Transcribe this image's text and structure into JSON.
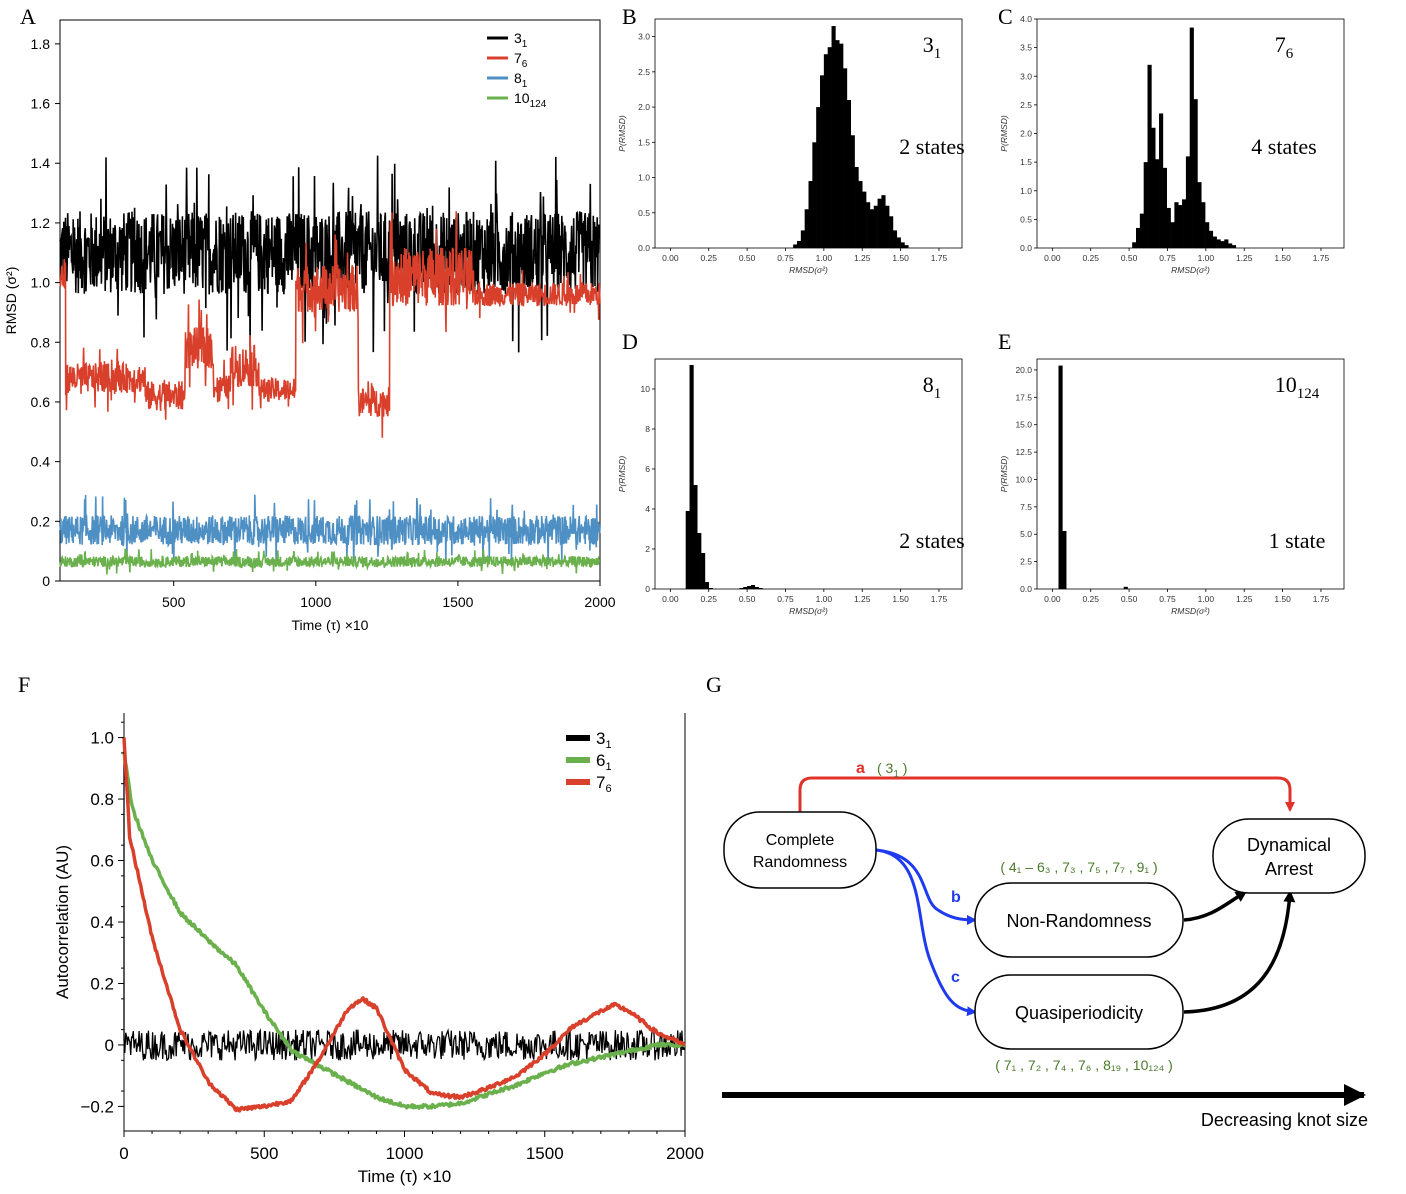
{
  "panel_letters": {
    "A": "A",
    "B": "B",
    "C": "C",
    "D": "D",
    "E": "E",
    "F": "F",
    "G": "G"
  },
  "colors": {
    "black": "#000000",
    "red": "#d9402b",
    "blue": "#4e8fc4",
    "green": "#6ab04c",
    "arrow_red": "#e0322a",
    "arrow_blue": "#1f3bf0",
    "paren_green": "#4a7a2a"
  },
  "chart_data": [
    {
      "id": "A",
      "type": "line",
      "xlabel": "Time (τ) ×10",
      "ylabel": "RMSD (σ²)",
      "xlim": [
        100,
        2000
      ],
      "ylim": [
        0,
        1.88
      ],
      "xticks": [
        500,
        1000,
        1500,
        2000
      ],
      "yticks": [
        0,
        0.2,
        0.4,
        0.6,
        0.8,
        1.0,
        1.2,
        1.4,
        1.6,
        1.8
      ],
      "ytick_labels": [
        "0",
        "0.2",
        "0.4",
        "0.6",
        "0.8",
        "1.0",
        "1.2",
        "1.4",
        "1.6",
        "1.8"
      ],
      "legend_placement": "top-right",
      "series": [
        {
          "name": "3",
          "sub": "1",
          "color": "#000000",
          "segments": [
            {
              "x0": 100,
              "x1": 2000,
              "base": 1.1,
              "noise": 0.14
            }
          ]
        },
        {
          "name": "7",
          "sub": "6",
          "color": "#d9402b",
          "segments": [
            {
              "x0": 100,
              "x1": 120,
              "base": 1.02,
              "noise": 0.06
            },
            {
              "x0": 120,
              "x1": 400,
              "base": 0.68,
              "noise": 0.05
            },
            {
              "x0": 400,
              "x1": 540,
              "base": 0.62,
              "noise": 0.05
            },
            {
              "x0": 540,
              "x1": 640,
              "base": 0.78,
              "noise": 0.07
            },
            {
              "x0": 640,
              "x1": 700,
              "base": 0.65,
              "noise": 0.04
            },
            {
              "x0": 700,
              "x1": 800,
              "base": 0.72,
              "noise": 0.07
            },
            {
              "x0": 800,
              "x1": 930,
              "base": 0.64,
              "noise": 0.04
            },
            {
              "x0": 930,
              "x1": 1150,
              "base": 0.98,
              "noise": 0.08
            },
            {
              "x0": 1150,
              "x1": 1260,
              "base": 0.6,
              "noise": 0.05
            },
            {
              "x0": 1260,
              "x1": 1550,
              "base": 1.02,
              "noise": 0.1
            },
            {
              "x0": 1550,
              "x1": 2000,
              "base": 0.96,
              "noise": 0.04
            }
          ]
        },
        {
          "name": "8",
          "sub": "1",
          "color": "#4e8fc4",
          "segments": [
            {
              "x0": 100,
              "x1": 2000,
              "base": 0.17,
              "noise": 0.05
            }
          ]
        },
        {
          "name": "10",
          "sub": "124",
          "color": "#6ab04c",
          "segments": [
            {
              "x0": 100,
              "x1": 2000,
              "base": 0.065,
              "noise": 0.018
            }
          ]
        }
      ]
    },
    {
      "id": "B",
      "type": "bar",
      "knot": "3",
      "knot_sub": "1",
      "states_label": "2 states",
      "xlabel": "RMSD(σ²)",
      "ylabel": "P(RMSD)",
      "xlim": [
        -0.1,
        1.9
      ],
      "ylim": [
        0,
        3.25
      ],
      "xticks": [
        0,
        0.25,
        0.5,
        0.75,
        1.0,
        1.25,
        1.5,
        1.75
      ],
      "xtick_labels": [
        "0.00",
        "0.25",
        "0.50",
        "0.75",
        "1.00",
        "1.25",
        "1.50",
        "1.75"
      ],
      "yticks": [
        0,
        0.5,
        1.0,
        1.5,
        2.0,
        2.5,
        3.0
      ],
      "ytick_labels": [
        "0.0",
        "0.5",
        "1.0",
        "1.5",
        "2.0",
        "2.5",
        "3.0"
      ],
      "bin_start": 0.8,
      "bin_width": 0.025,
      "values": [
        0.05,
        0.1,
        0.25,
        0.55,
        0.95,
        1.5,
        2.0,
        2.45,
        2.75,
        2.85,
        3.15,
        2.95,
        2.9,
        2.55,
        2.1,
        1.6,
        1.15,
        0.95,
        0.8,
        0.65,
        0.55,
        0.6,
        0.7,
        0.75,
        0.6,
        0.45,
        0.25,
        0.15,
        0.08,
        0.04
      ]
    },
    {
      "id": "C",
      "type": "bar",
      "knot": "7",
      "knot_sub": "6",
      "states_label": "4 states",
      "xlabel": "RMSD(σ²)",
      "ylabel": "P(RMSD)",
      "xlim": [
        -0.1,
        1.9
      ],
      "ylim": [
        0,
        4.0
      ],
      "xticks": [
        0,
        0.25,
        0.5,
        0.75,
        1.0,
        1.25,
        1.5,
        1.75
      ],
      "xtick_labels": [
        "0.00",
        "0.25",
        "0.50",
        "0.75",
        "1.00",
        "1.25",
        "1.50",
        "1.75"
      ],
      "yticks": [
        0,
        0.5,
        1.0,
        1.5,
        2.0,
        2.5,
        3.0,
        3.5,
        4.0
      ],
      "ytick_labels": [
        "0.0",
        "0.5",
        "1.0",
        "1.5",
        "2.0",
        "2.5",
        "3.0",
        "3.5",
        "4.0"
      ],
      "bin_start": 0.52,
      "bin_width": 0.025,
      "values": [
        0.1,
        0.35,
        0.6,
        1.5,
        3.2,
        2.1,
        1.55,
        2.35,
        1.4,
        0.7,
        0.45,
        0.8,
        0.75,
        0.85,
        1.6,
        3.85,
        2.6,
        1.15,
        0.8,
        0.45,
        0.3,
        0.2,
        0.15,
        0.12,
        0.15,
        0.08,
        0.05
      ]
    },
    {
      "id": "D",
      "type": "bar",
      "knot": "8",
      "knot_sub": "1",
      "states_label": "2 states",
      "xlabel": "RMSD(σ²)",
      "ylabel": "P(RMSD)",
      "xlim": [
        -0.1,
        1.9
      ],
      "ylim": [
        0,
        11.5
      ],
      "xticks": [
        0,
        0.25,
        0.5,
        0.75,
        1.0,
        1.25,
        1.5,
        1.75
      ],
      "xtick_labels": [
        "0.00",
        "0.25",
        "0.50",
        "0.75",
        "1.00",
        "1.25",
        "1.50",
        "1.75"
      ],
      "yticks": [
        0,
        2,
        4,
        6,
        8,
        10
      ],
      "ytick_labels": [
        "0",
        "2",
        "4",
        "6",
        "8",
        "10"
      ],
      "bin_start": 0.1,
      "bin_width": 0.025,
      "values": [
        3.9,
        11.2,
        5.2,
        2.8,
        1.8,
        0.35,
        0.05,
        0,
        0,
        0,
        0,
        0,
        0,
        0,
        0.05,
        0.1,
        0.15,
        0.2,
        0.1,
        0.05
      ]
    },
    {
      "id": "E",
      "type": "bar",
      "knot": "10",
      "knot_sub": "124",
      "states_label": "1 state",
      "xlabel": "RMSD(σ²)",
      "ylabel": "P(RMSD)",
      "xlim": [
        -0.1,
        1.9
      ],
      "ylim": [
        0,
        21
      ],
      "xticks": [
        0,
        0.25,
        0.5,
        0.75,
        1.0,
        1.25,
        1.5,
        1.75
      ],
      "xtick_labels": [
        "0.00",
        "0.25",
        "0.50",
        "0.75",
        "1.00",
        "1.25",
        "1.50",
        "1.75"
      ],
      "yticks": [
        0,
        2.5,
        5.0,
        7.5,
        10.0,
        12.5,
        15.0,
        17.5,
        20.0
      ],
      "ytick_labels": [
        "0.0",
        "2.5",
        "5.0",
        "7.5",
        "10.0",
        "12.5",
        "15.0",
        "17.5",
        "20.0"
      ],
      "bin_start": 0.04,
      "bin_width": 0.025,
      "values": [
        20.4,
        5.3,
        0,
        0,
        0,
        0,
        0,
        0,
        0,
        0,
        0,
        0,
        0,
        0,
        0,
        0,
        0,
        0.2
      ]
    },
    {
      "id": "F",
      "type": "line",
      "xlabel": "Time (τ) ×10",
      "ylabel": "Autocorrelation (AU)",
      "xlim": [
        0,
        2000
      ],
      "ylim": [
        -0.28,
        1.08
      ],
      "xticks": [
        0,
        500,
        1000,
        1500,
        2000
      ],
      "yticks": [
        -0.2,
        0,
        0.2,
        0.4,
        0.6,
        0.8,
        1.0
      ],
      "ytick_labels": [
        "−0.2",
        "0",
        "0.2",
        "0.4",
        "0.6",
        "0.8",
        "1.0"
      ],
      "legend_placement": "top-right",
      "series": [
        {
          "name": "3",
          "sub": "1",
          "color": "#000000",
          "x": [
            0,
            2000
          ],
          "y": [
            0,
            0
          ],
          "noise": 0.05
        },
        {
          "name": "6",
          "sub": "1",
          "color": "#6ab04c",
          "x": [
            0,
            30,
            100,
            200,
            300,
            400,
            500,
            600,
            700,
            800,
            900,
            1000,
            1100,
            1200,
            1300,
            1400,
            1500,
            1600,
            1700,
            1800,
            1900,
            2000
          ],
          "y": [
            0.95,
            0.77,
            0.6,
            0.43,
            0.34,
            0.26,
            0.11,
            -0.02,
            -0.07,
            -0.12,
            -0.17,
            -0.2,
            -0.2,
            -0.19,
            -0.16,
            -0.13,
            -0.09,
            -0.06,
            -0.04,
            -0.02,
            0.0,
            0.0
          ]
        },
        {
          "name": "7",
          "sub": "6",
          "color": "#d9402b",
          "x": [
            0,
            20,
            100,
            200,
            300,
            400,
            500,
            600,
            700,
            800,
            850,
            900,
            1000,
            1100,
            1200,
            1300,
            1400,
            1500,
            1600,
            1700,
            1750,
            1800,
            1900,
            2000
          ],
          "y": [
            1.0,
            0.68,
            0.35,
            0.05,
            -0.12,
            -0.21,
            -0.2,
            -0.18,
            -0.04,
            0.12,
            0.15,
            0.12,
            -0.08,
            -0.16,
            -0.17,
            -0.14,
            -0.1,
            -0.03,
            0.06,
            0.11,
            0.13,
            0.11,
            0.04,
            0.0
          ]
        }
      ]
    }
  ],
  "diagram": {
    "nodes": {
      "complete": [
        "Complete",
        "Randomness"
      ],
      "arrest": [
        "Dynamical",
        "Arrest"
      ],
      "nonrandom": "Non-Randomness",
      "quasi": "Quasiperiodicity"
    },
    "arrow_labels": {
      "a": "a",
      "b": "b",
      "c": "c"
    },
    "paren_a": [
      "( 3",
      "1",
      " )"
    ],
    "paren_b": "( 4₁ – 6₃ , 7₃ , 7₅ , 7₇ , 9₁ )",
    "paren_c": "( 7₁ , 7₂ , 7₄ , 7₆ , 8₁₉ , 10₁₂₄ )",
    "axis_label": "Decreasing knot size"
  }
}
